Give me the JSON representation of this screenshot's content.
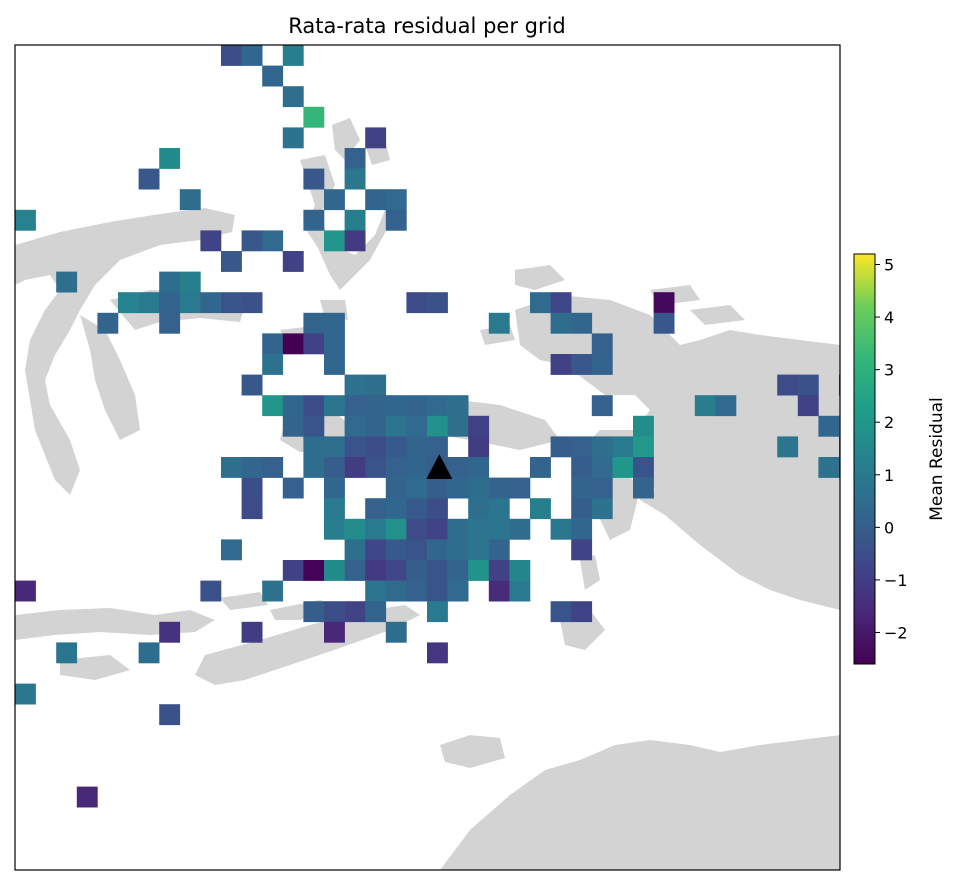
{
  "chart_data": {
    "type": "heatmap",
    "title": "Rata-rata residual per grid",
    "colorbar": {
      "label": "Mean Residual",
      "range": [
        -2.6,
        5.2
      ],
      "ticks": [
        -2,
        -1,
        0,
        1,
        2,
        3,
        4,
        5
      ],
      "tick_labels": [
        "−2",
        "−1",
        "0",
        "1",
        "2",
        "3",
        "4",
        "5"
      ],
      "colormap": "viridis",
      "position": "right"
    },
    "grid": false,
    "marker": {
      "shape": "triangle",
      "color": "#000000",
      "col": 20,
      "row": 20.5
    },
    "basemap_color": "#d3d3d3",
    "cells": [
      [
        10,
        0,
        -0.5
      ],
      [
        11,
        0,
        0.3
      ],
      [
        13,
        0,
        1.2
      ],
      [
        12,
        1,
        0.3
      ],
      [
        13,
        2,
        0.6
      ],
      [
        14,
        3,
        3.2
      ],
      [
        13,
        4,
        0.7
      ],
      [
        17,
        4,
        -0.9
      ],
      [
        7,
        5,
        1.6
      ],
      [
        16,
        5,
        0.1
      ],
      [
        6,
        6,
        -0.2
      ],
      [
        14,
        6,
        -0.2
      ],
      [
        16,
        6,
        0.9
      ],
      [
        8,
        7,
        0.5
      ],
      [
        15,
        7,
        0.3
      ],
      [
        17,
        7,
        0.2
      ],
      [
        18,
        7,
        0.4
      ],
      [
        0,
        8,
        1.3
      ],
      [
        14,
        8,
        0.2
      ],
      [
        16,
        8,
        1.2
      ],
      [
        18,
        8,
        0.1
      ],
      [
        9,
        9,
        -0.8
      ],
      [
        11,
        9,
        -0.2
      ],
      [
        12,
        9,
        0.4
      ],
      [
        15,
        9,
        2.0
      ],
      [
        16,
        9,
        -1.1
      ],
      [
        10,
        10,
        -0.2
      ],
      [
        13,
        10,
        -0.9
      ],
      [
        2,
        11,
        0.6
      ],
      [
        7,
        11,
        0.5
      ],
      [
        8,
        11,
        1.2
      ],
      [
        5,
        12,
        1.3
      ],
      [
        6,
        12,
        1.0
      ],
      [
        7,
        12,
        0.2
      ],
      [
        8,
        12,
        1.0
      ],
      [
        9,
        12,
        0.3
      ],
      [
        10,
        12,
        -0.3
      ],
      [
        11,
        12,
        -0.4
      ],
      [
        19,
        12,
        -0.6
      ],
      [
        20,
        12,
        -0.4
      ],
      [
        25,
        12,
        0.4
      ],
      [
        26,
        12,
        -0.7
      ],
      [
        31,
        12,
        -2.4
      ],
      [
        4,
        13,
        0.2
      ],
      [
        7,
        13,
        0.1
      ],
      [
        14,
        13,
        0.2
      ],
      [
        15,
        13,
        0.3
      ],
      [
        23,
        13,
        1.0
      ],
      [
        26,
        13,
        0.5
      ],
      [
        27,
        13,
        0.3
      ],
      [
        31,
        13,
        -0.2
      ],
      [
        12,
        14,
        0.2
      ],
      [
        13,
        14,
        -2.6
      ],
      [
        14,
        14,
        -0.9
      ],
      [
        15,
        14,
        0.3
      ],
      [
        28,
        14,
        0.1
      ],
      [
        12,
        15,
        0.7
      ],
      [
        15,
        15,
        0.3
      ],
      [
        26,
        15,
        -0.9
      ],
      [
        27,
        15,
        -0.2
      ],
      [
        28,
        15,
        0.2
      ],
      [
        11,
        16,
        -0.2
      ],
      [
        16,
        16,
        0.7
      ],
      [
        17,
        16,
        0.6
      ],
      [
        37,
        16,
        -0.6
      ],
      [
        38,
        16,
        -0.4
      ],
      [
        40,
        16,
        0.1
      ],
      [
        12,
        17,
        2.0
      ],
      [
        13,
        17,
        0.3
      ],
      [
        14,
        17,
        -0.5
      ],
      [
        15,
        17,
        0.8
      ],
      [
        16,
        17,
        0.1
      ],
      [
        17,
        17,
        0.2
      ],
      [
        18,
        17,
        0.3
      ],
      [
        19,
        17,
        0.2
      ],
      [
        20,
        17,
        0.4
      ],
      [
        21,
        17,
        0.6
      ],
      [
        28,
        17,
        0.1
      ],
      [
        33,
        17,
        1.1
      ],
      [
        34,
        17,
        0.4
      ],
      [
        38,
        17,
        -0.9
      ],
      [
        13,
        18,
        0.2
      ],
      [
        14,
        18,
        -0.3
      ],
      [
        16,
        18,
        0.4
      ],
      [
        17,
        18,
        0.2
      ],
      [
        18,
        18,
        0.8
      ],
      [
        19,
        18,
        0.4
      ],
      [
        20,
        18,
        1.8
      ],
      [
        21,
        18,
        0.6
      ],
      [
        22,
        18,
        -0.9
      ],
      [
        30,
        18,
        1.7
      ],
      [
        39,
        18,
        0.3
      ],
      [
        14,
        19,
        0.5
      ],
      [
        15,
        19,
        0.6
      ],
      [
        16,
        19,
        -0.3
      ],
      [
        17,
        19,
        -0.5
      ],
      [
        18,
        19,
        -0.1
      ],
      [
        19,
        19,
        0.2
      ],
      [
        20,
        19,
        0.1
      ],
      [
        22,
        19,
        -1.0
      ],
      [
        26,
        19,
        0.0
      ],
      [
        27,
        19,
        0.1
      ],
      [
        28,
        19,
        0.6
      ],
      [
        29,
        19,
        1.0
      ],
      [
        30,
        19,
        2.1
      ],
      [
        37,
        19,
        0.8
      ],
      [
        40,
        19,
        1.6
      ],
      [
        10,
        20,
        0.6
      ],
      [
        11,
        20,
        0.3
      ],
      [
        12,
        20,
        0.1
      ],
      [
        14,
        20,
        0.5
      ],
      [
        15,
        20,
        0.0
      ],
      [
        16,
        20,
        -1.0
      ],
      [
        17,
        20,
        -0.3
      ],
      [
        18,
        20,
        0.1
      ],
      [
        19,
        20,
        0.2
      ],
      [
        20,
        20,
        0.0
      ],
      [
        21,
        20,
        0.1
      ],
      [
        22,
        20,
        0.3
      ],
      [
        25,
        20,
        0.2
      ],
      [
        27,
        20,
        0.0
      ],
      [
        28,
        20,
        0.4
      ],
      [
        29,
        20,
        2.0
      ],
      [
        30,
        20,
        -0.3
      ],
      [
        39,
        20,
        0.7
      ],
      [
        40,
        20,
        0.3
      ],
      [
        11,
        21,
        -0.5
      ],
      [
        13,
        21,
        0.1
      ],
      [
        15,
        21,
        0.3
      ],
      [
        18,
        21,
        0.2
      ],
      [
        19,
        21,
        0.4
      ],
      [
        20,
        21,
        0.0
      ],
      [
        21,
        21,
        0.3
      ],
      [
        22,
        21,
        0.5
      ],
      [
        23,
        21,
        0.2
      ],
      [
        24,
        21,
        0.1
      ],
      [
        27,
        21,
        0.2
      ],
      [
        28,
        21,
        0.1
      ],
      [
        30,
        21,
        0.2
      ],
      [
        11,
        22,
        -0.6
      ],
      [
        15,
        22,
        1.0
      ],
      [
        17,
        22,
        0.1
      ],
      [
        18,
        22,
        0.3
      ],
      [
        19,
        22,
        -0.1
      ],
      [
        20,
        22,
        -0.5
      ],
      [
        22,
        22,
        0.6
      ],
      [
        23,
        22,
        0.8
      ],
      [
        25,
        22,
        1.2
      ],
      [
        27,
        22,
        0.0
      ],
      [
        28,
        22,
        0.7
      ],
      [
        15,
        23,
        1.1
      ],
      [
        16,
        23,
        1.7
      ],
      [
        17,
        23,
        1.0
      ],
      [
        18,
        23,
        1.8
      ],
      [
        19,
        23,
        -0.6
      ],
      [
        20,
        23,
        -0.8
      ],
      [
        21,
        23,
        0.5
      ],
      [
        22,
        23,
        0.8
      ],
      [
        23,
        23,
        0.8
      ],
      [
        24,
        23,
        0.5
      ],
      [
        26,
        23,
        0.9
      ],
      [
        27,
        23,
        0.3
      ],
      [
        10,
        24,
        0.4
      ],
      [
        16,
        24,
        0.6
      ],
      [
        17,
        24,
        -0.7
      ],
      [
        18,
        24,
        -0.1
      ],
      [
        19,
        24,
        -0.3
      ],
      [
        20,
        24,
        0.3
      ],
      [
        21,
        24,
        0.5
      ],
      [
        22,
        24,
        0.8
      ],
      [
        23,
        24,
        0.2
      ],
      [
        27,
        24,
        -0.8
      ],
      [
        13,
        25,
        -0.9
      ],
      [
        14,
        25,
        -2.5
      ],
      [
        15,
        25,
        1.6
      ],
      [
        16,
        25,
        0.1
      ],
      [
        17,
        25,
        -1.1
      ],
      [
        18,
        25,
        -0.7
      ],
      [
        19,
        25,
        0.0
      ],
      [
        20,
        25,
        -0.3
      ],
      [
        21,
        25,
        0.2
      ],
      [
        22,
        25,
        1.9
      ],
      [
        23,
        25,
        -0.9
      ],
      [
        24,
        25,
        1.4
      ],
      [
        0,
        26,
        -1.6
      ],
      [
        9,
        26,
        -0.4
      ],
      [
        12,
        26,
        0.7
      ],
      [
        17,
        26,
        0.8
      ],
      [
        18,
        26,
        0.4
      ],
      [
        19,
        26,
        0.1
      ],
      [
        20,
        26,
        -0.3
      ],
      [
        21,
        26,
        0.4
      ],
      [
        23,
        26,
        -1.5
      ],
      [
        24,
        26,
        1.0
      ],
      [
        14,
        27,
        0.0
      ],
      [
        15,
        27,
        -0.5
      ],
      [
        16,
        27,
        -0.8
      ],
      [
        17,
        27,
        0.2
      ],
      [
        20,
        27,
        1.0
      ],
      [
        26,
        27,
        -0.3
      ],
      [
        27,
        27,
        -0.8
      ],
      [
        7,
        28,
        -1.3
      ],
      [
        11,
        28,
        -1.0
      ],
      [
        15,
        28,
        -1.6
      ],
      [
        18,
        28,
        0.5
      ],
      [
        2,
        29,
        0.8
      ],
      [
        6,
        29,
        0.5
      ],
      [
        20,
        29,
        -1.2
      ],
      [
        0,
        31,
        0.9
      ],
      [
        7,
        32,
        -0.4
      ],
      [
        3,
        36,
        -1.6
      ]
    ]
  }
}
